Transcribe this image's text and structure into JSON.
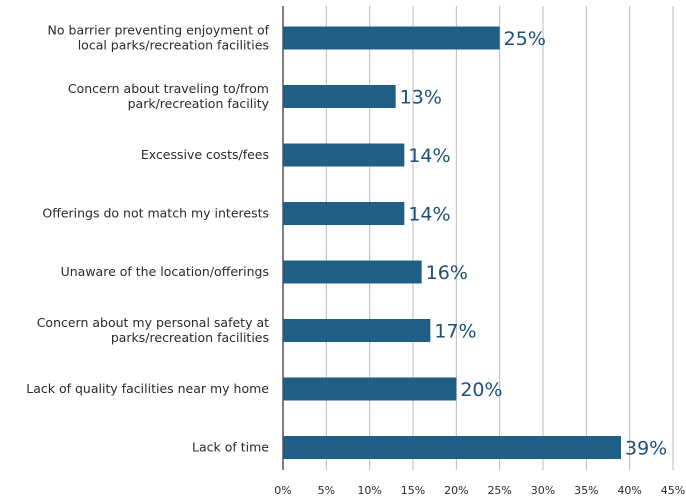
{
  "chart_data": {
    "type": "bar",
    "orientation": "horizontal",
    "categories": [
      [
        "No barrier preventing enjoyment of",
        "local parks/recreation facilities"
      ],
      [
        "Concern about traveling to/from",
        "park/recreation facility"
      ],
      [
        "Excessive costs/fees"
      ],
      [
        "Offerings do not match my interests"
      ],
      [
        "Unaware of the location/offerings"
      ],
      [
        "Concern about my personal safety at",
        "parks/recreation facilities"
      ],
      [
        "Lack of quality facilities near my home"
      ],
      [
        "Lack of time"
      ]
    ],
    "values": [
      25,
      13,
      14,
      14,
      16,
      17,
      20,
      39
    ],
    "value_labels": [
      "25%",
      "13%",
      "14%",
      "14%",
      "16%",
      "17%",
      "20%",
      "39%"
    ],
    "xlim": [
      0,
      45
    ],
    "xticks": [
      "0%",
      "5%",
      "10%",
      "15%",
      "20%",
      "25%",
      "30%",
      "35%",
      "40%",
      "45%"
    ],
    "grid": true,
    "colors": {
      "bar": "#1f5f86",
      "grid": "#b8b8b8",
      "axis": "#555555",
      "text": "#2a2a2a",
      "value_label": "#1f4f7a"
    }
  }
}
